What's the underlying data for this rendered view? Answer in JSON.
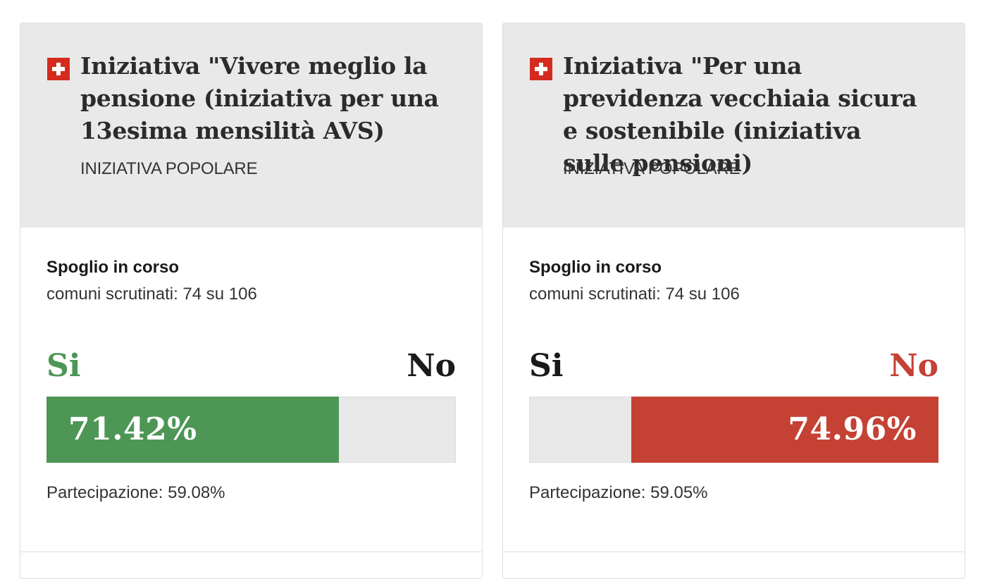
{
  "colors": {
    "yes_green": "#4d9656",
    "no_red": "#c44133",
    "neutral_text": "#1a1a1a",
    "header_bg": "#e9e9e9",
    "flag_red": "#d52b1e"
  },
  "cards": [
    {
      "flag_icon": "swiss-flag-icon",
      "title": "Iniziativa \"Vivere meglio la pensione (iniziativa per una 13esima mensilità AVS)",
      "type": "INIZIATIVA POPOLARE",
      "status": "Spoglio in corso",
      "counted": "comuni scrutinati: 74 su 106",
      "yes_label": "Si",
      "no_label": "No",
      "leading": "yes",
      "result_percent": 71.42,
      "result_label": "71.42%",
      "turnout": "Partecipazione: 59.08%"
    },
    {
      "flag_icon": "swiss-flag-icon",
      "title": "Iniziativa \"Per una previdenza vecchiaia sicura e sostenibile (iniziativa sulle pensioni)",
      "type": "INIZIATIVA POPOLARE",
      "status": "Spoglio in corso",
      "counted": "comuni scrutinati: 74 su 106",
      "yes_label": "Si",
      "no_label": "No",
      "leading": "no",
      "result_percent": 74.96,
      "result_label": "74.96%",
      "turnout": "Partecipazione: 59.05%"
    }
  ]
}
